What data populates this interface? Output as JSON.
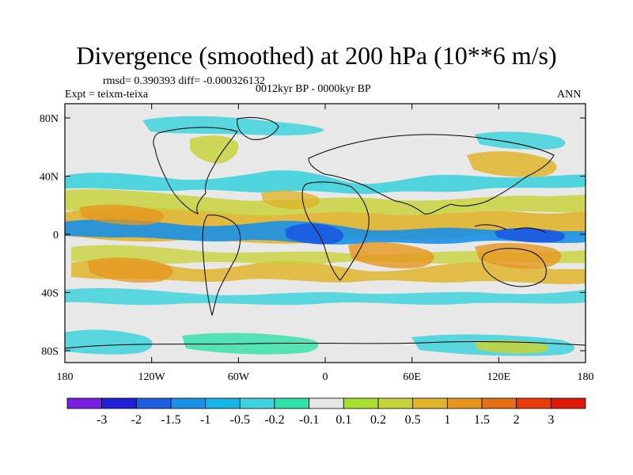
{
  "title": "Divergence (smoothed) at 200 hPa (10**6 m/s)",
  "stats": "rmsd= 0.390393  diff= -0.000326132",
  "experiment": "Expt = teixm-teixa",
  "period": "0012kyr BP - 0000kyr BP",
  "season": "ANN",
  "colors": {
    "land_outline": "#000000",
    "background": "#e8e8e8",
    "frame": "#000000"
  },
  "axes": {
    "x_labels": [
      "180",
      "120W",
      "60W",
      "0",
      "60E",
      "120E",
      "180"
    ],
    "x_values": [
      -180,
      -120,
      -60,
      0,
      60,
      120,
      180
    ],
    "y_labels": [
      "80N",
      "40N",
      "0",
      "40S",
      "80S"
    ],
    "y_values": [
      80,
      40,
      0,
      -40,
      -80
    ]
  },
  "colorbar": {
    "labels": [
      "-3",
      "-2",
      "-1.5",
      "-1",
      "-0.5",
      "-0.2",
      "-0.1",
      "0.1",
      "0.2",
      "0.5",
      "1",
      "1.5",
      "2",
      "3"
    ],
    "colors": [
      "#7a1fe0",
      "#2020d8",
      "#1c5fe0",
      "#1a90e6",
      "#17b4e6",
      "#3fd2dc",
      "#30e0a8",
      "#e6e6e6",
      "#a8e032",
      "#c8d23c",
      "#e0b42c",
      "#e6961e",
      "#e66e14",
      "#e63c0a",
      "#e01a0a"
    ]
  }
}
